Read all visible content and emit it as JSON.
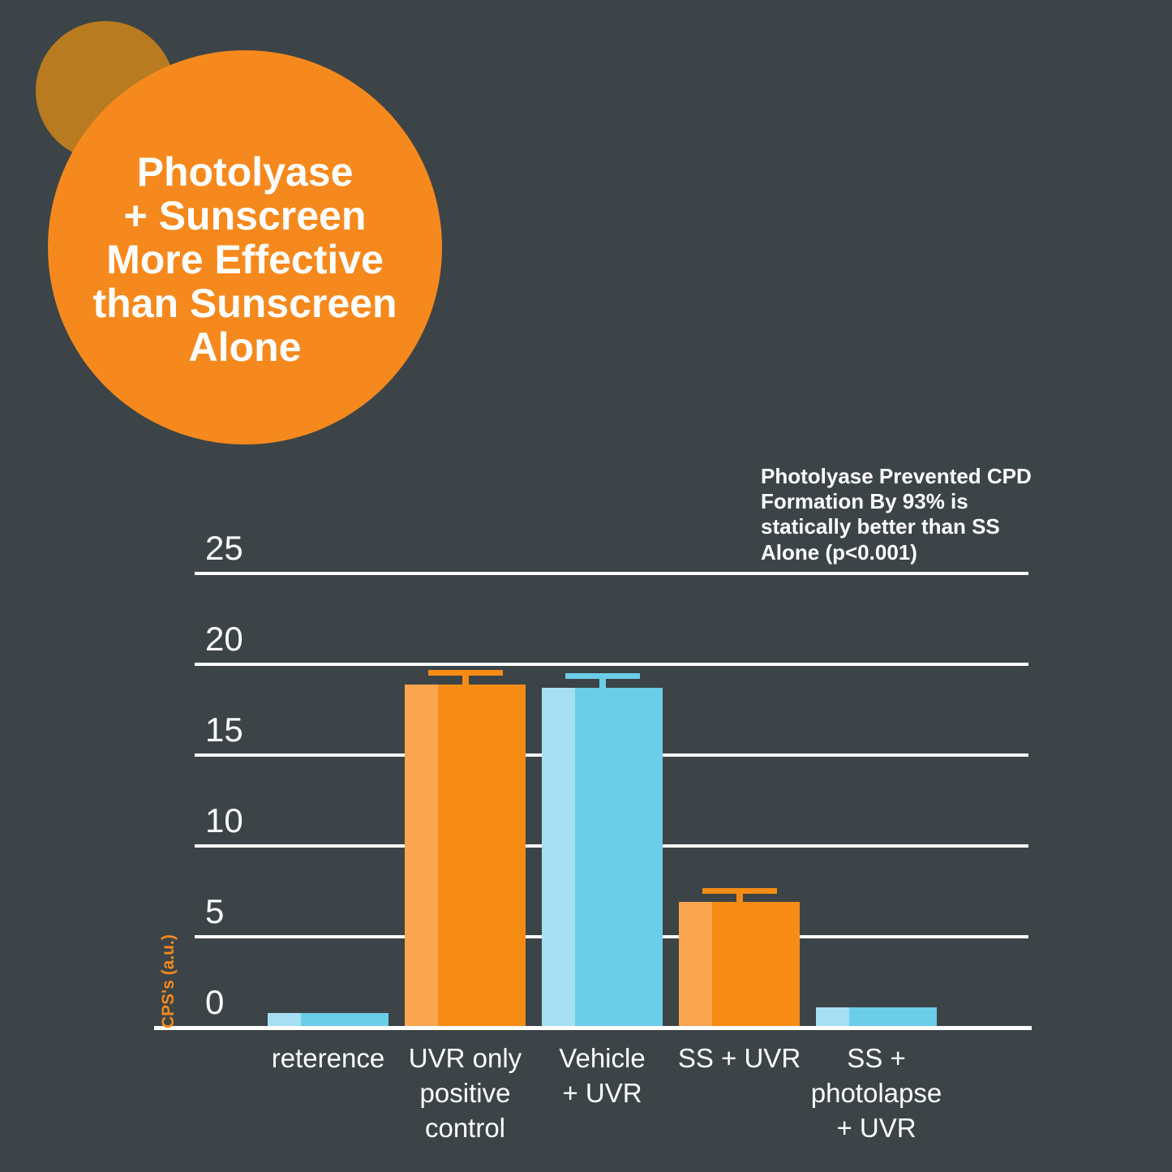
{
  "title_bubble": {
    "text": "Photolyase\n+ Sunscreen\nMore Effective\nthan Sunscreen\nAlone"
  },
  "annotation": {
    "text": "Photolyase Prevented CPD\nFormation By 93% is\nstatically better than SS\nAlone (p<0.001)"
  },
  "chart_data": {
    "type": "bar",
    "title": "",
    "xlabel": "",
    "ylabel": "CPS's (a.u.)",
    "categories": [
      "reterence",
      "UVR only\npositive\ncontrol",
      "Vehicle\n+ UVR",
      "SS + UVR",
      "SS +\nphotolapse\n+ UVR"
    ],
    "values": [
      0.8,
      18.9,
      18.7,
      6.9,
      1.1
    ],
    "error_caps": [
      null,
      19.7,
      19.5,
      7.7,
      null
    ],
    "bar_colors": [
      "blue",
      "orange",
      "blue",
      "orange",
      "blue"
    ],
    "yticks": [
      0,
      5,
      10,
      15,
      20,
      25
    ],
    "ylim": [
      0,
      25
    ],
    "grid": true,
    "legend": false
  },
  "colors": {
    "background": "#3C4447",
    "bubble_orange": "#F6891D",
    "bubble_orange_dark": "#B97B20",
    "bar_orange": "#F78C15",
    "bar_orange_light": "#FBA64F",
    "bar_blue": "#6CCDE9",
    "bar_blue_light": "#A6DFF3",
    "gridline": "#FFFFFF",
    "text": "#FFFFFF",
    "y_axis_title": "#F6891D"
  }
}
